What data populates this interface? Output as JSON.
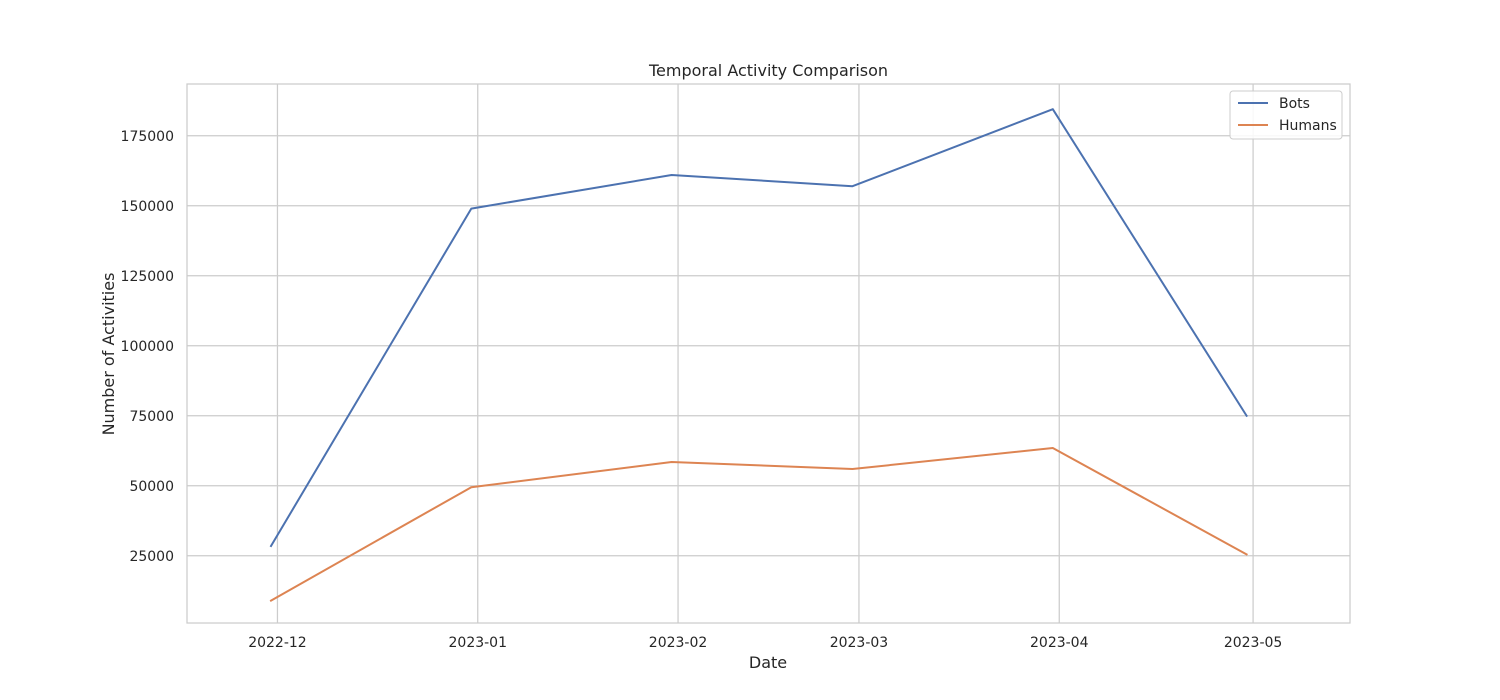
{
  "chart_data": {
    "type": "line",
    "title": "Temporal Activity Comparison",
    "xlabel": "Date",
    "ylabel": "Number of Activities",
    "x": [
      "2022-11-30",
      "2022-12-31",
      "2023-01-31",
      "2023-02-28",
      "2023-03-31",
      "2023-04-30"
    ],
    "x_ticks": [
      "2022-12-01",
      "2023-01-01",
      "2023-02-01",
      "2023-03-01",
      "2023-04-01",
      "2023-05-01"
    ],
    "x_tick_labels": [
      "2022-12",
      "2023-01",
      "2023-02",
      "2023-03",
      "2023-04",
      "2023-05"
    ],
    "xlim": [
      "2022-11-17",
      "2023-05-16"
    ],
    "y_ticks": [
      25000,
      50000,
      75000,
      100000,
      125000,
      150000,
      175000
    ],
    "ylim": [
      1000,
      193500
    ],
    "grid": true,
    "legend_position": "top-right",
    "series": [
      {
        "name": "Bots",
        "color": "#4c72b0",
        "values": [
          28500,
          149000,
          161000,
          157000,
          184500,
          75000
        ]
      },
      {
        "name": "Humans",
        "color": "#dd8452",
        "values": [
          9000,
          49500,
          58500,
          56000,
          63500,
          25500
        ]
      }
    ]
  }
}
